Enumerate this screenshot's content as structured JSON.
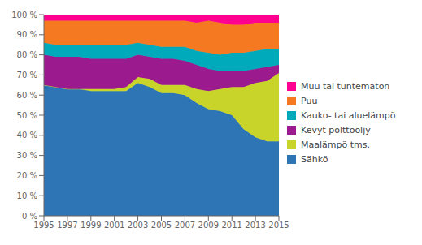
{
  "chart_data": {
    "type": "area",
    "stacked": true,
    "x": [
      1995,
      1996,
      1997,
      1998,
      1999,
      2000,
      2001,
      2002,
      2003,
      2004,
      2005,
      2006,
      2007,
      2008,
      2009,
      2010,
      2011,
      2012,
      2013,
      2014,
      2015
    ],
    "series": [
      {
        "name": "Sähkö",
        "color": "#2E75B6",
        "values": [
          65,
          64,
          63,
          63,
          62,
          62,
          62,
          62,
          66,
          64,
          61,
          61,
          60,
          56,
          53,
          52,
          50,
          43,
          39,
          37,
          37
        ]
      },
      {
        "name": "Maalämpö tms.",
        "color": "#C9D42B",
        "values": [
          0,
          0,
          0,
          0,
          1,
          1,
          1,
          2,
          3,
          4,
          4,
          4,
          5,
          7,
          9,
          11,
          14,
          21,
          27,
          30,
          34
        ]
      },
      {
        "name": "Kevyt polttoöljy",
        "color": "#9B1B8E",
        "values": [
          15,
          15,
          16,
          16,
          15,
          15,
          15,
          14,
          11,
          11,
          13,
          13,
          12,
          12,
          11,
          9,
          8,
          8,
          7,
          7,
          4
        ]
      },
      {
        "name": "Kauko- tai aluelämpö",
        "color": "#00AABB",
        "values": [
          6,
          6,
          6,
          6,
          7,
          7,
          7,
          7,
          6,
          6,
          6,
          6,
          7,
          7,
          8,
          8,
          9,
          9,
          9,
          9,
          8
        ]
      },
      {
        "name": "Puu",
        "color": "#F47920",
        "values": [
          11,
          12,
          12,
          12,
          12,
          12,
          12,
          12,
          11,
          12,
          13,
          13,
          13,
          14,
          16,
          16,
          14,
          14,
          14,
          13,
          13
        ]
      },
      {
        "name": "Muu tai tuntematon",
        "color": "#FF0090",
        "values": [
          3,
          3,
          3,
          3,
          3,
          3,
          3,
          3,
          3,
          3,
          3,
          3,
          3,
          4,
          3,
          4,
          5,
          5,
          4,
          4,
          4
        ]
      }
    ],
    "xlim": [
      1995,
      2015
    ],
    "xticks": [
      1995,
      1997,
      1999,
      2001,
      2003,
      2005,
      2007,
      2009,
      2011,
      2013,
      2015
    ],
    "ylim": [
      0,
      100
    ],
    "yticks": [
      {
        "value": 0,
        "label": "0 %"
      },
      {
        "value": 10,
        "label": "10 %"
      },
      {
        "value": 20,
        "label": "20 %"
      },
      {
        "value": 30,
        "label": "30 %"
      },
      {
        "value": 40,
        "label": "40 %"
      },
      {
        "value": 50,
        "label": "50 %"
      },
      {
        "value": 60,
        "label": "60 %"
      },
      {
        "value": 70,
        "label": "70 %"
      },
      {
        "value": 80,
        "label": "80 %"
      },
      {
        "value": 90,
        "label": "90 %"
      },
      {
        "value": 100,
        "label": "100 %"
      }
    ],
    "grid": true,
    "legend": "right"
  }
}
